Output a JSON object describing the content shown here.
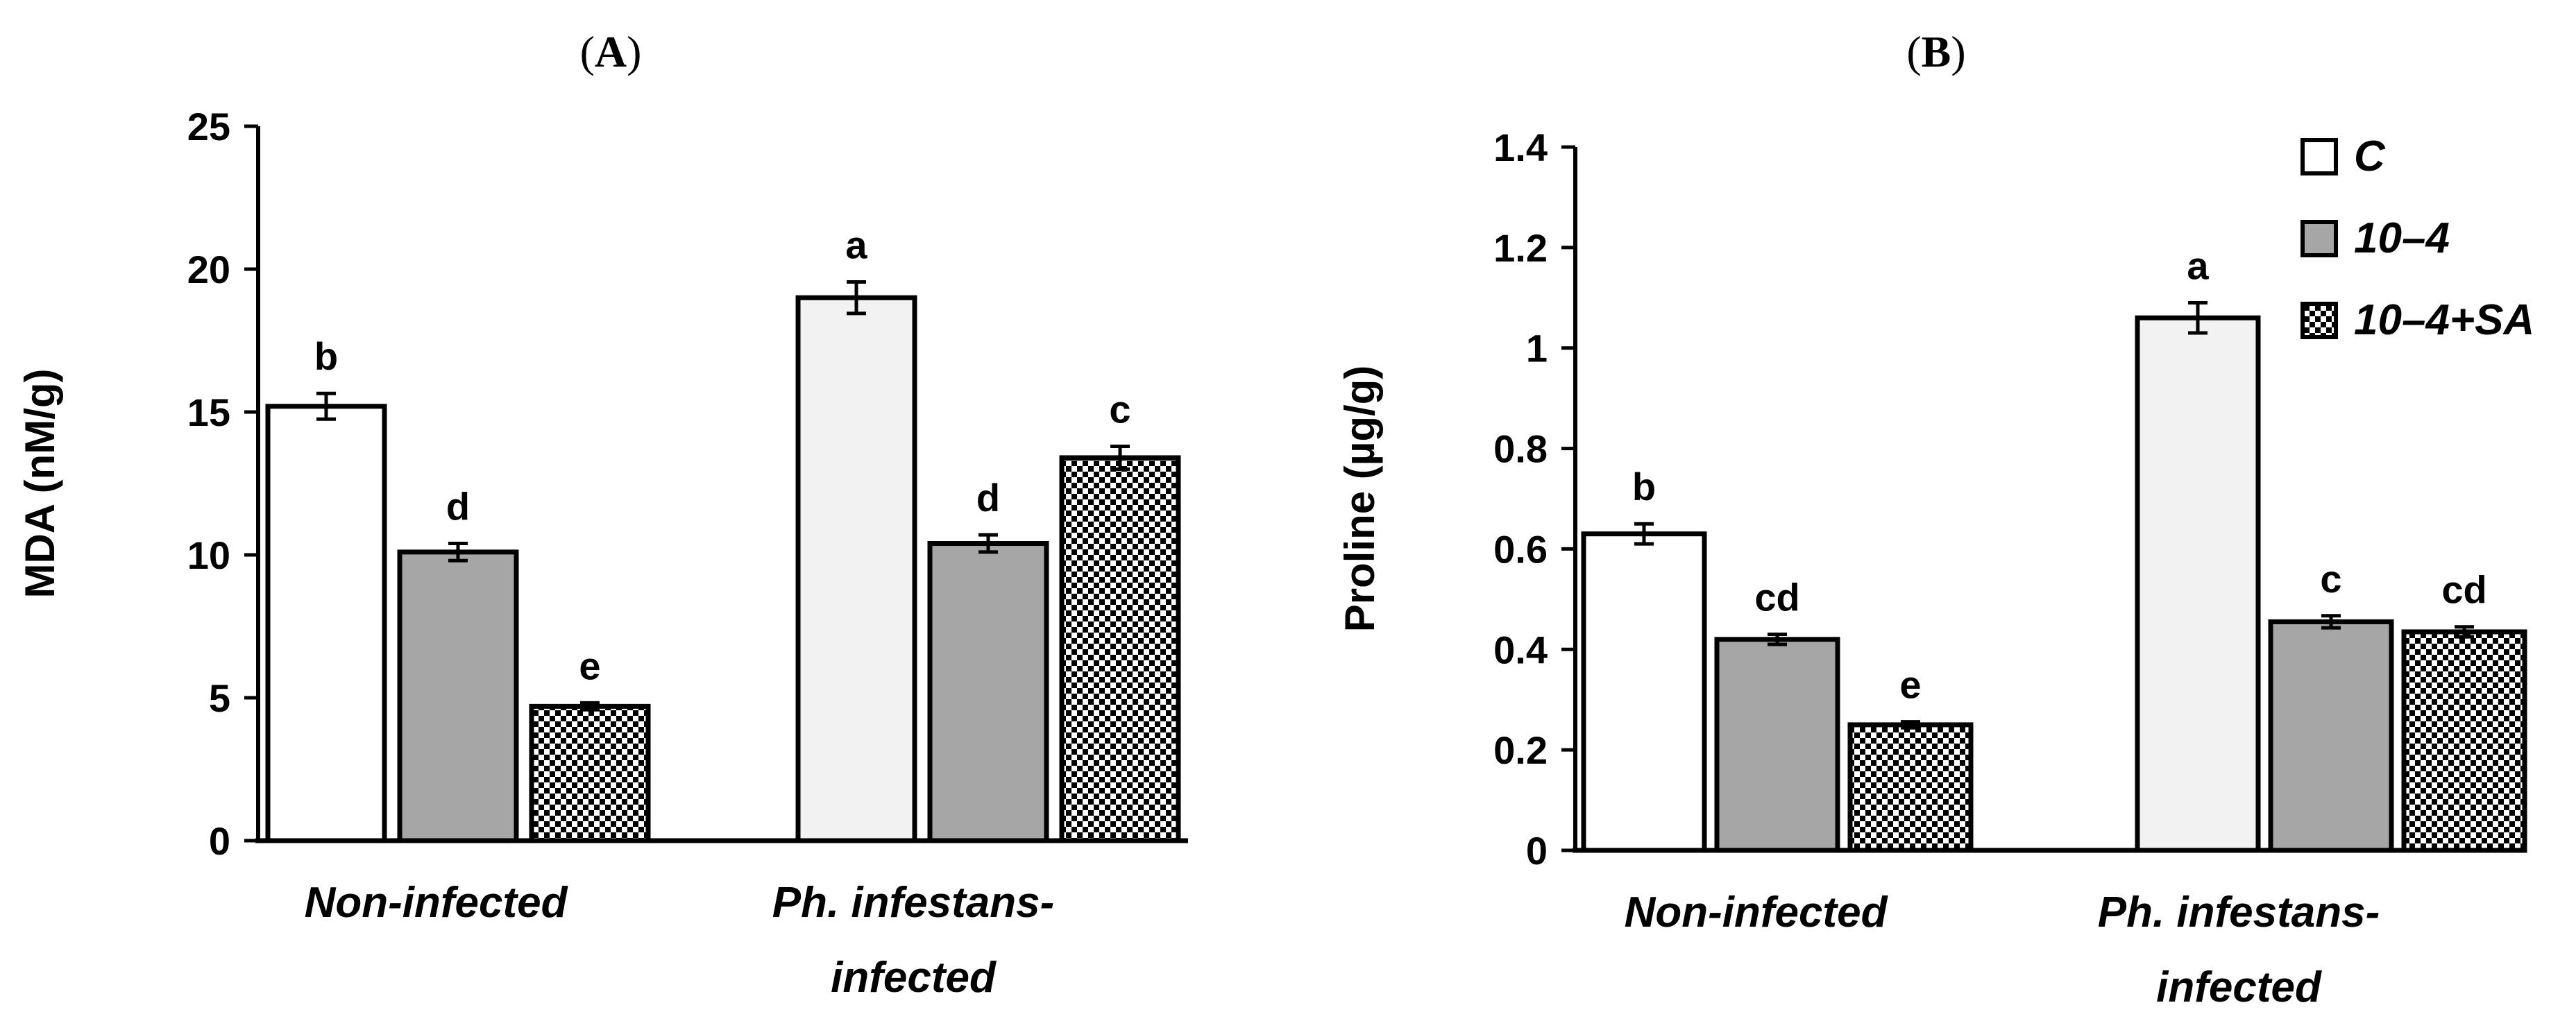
{
  "colors": {
    "C_nonInfected": "#ffffff",
    "C_infected": "#f2f2f2",
    "t10_4": "#a6a6a6",
    "checker": "#000000"
  },
  "legend": [
    "C",
    "10–4",
    "10–4+SA"
  ],
  "chart_data": [
    {
      "type": "bar",
      "panel_label": "(A)",
      "panel_letter": "A",
      "title": "",
      "ylabel": "MDA (nM/g)",
      "xlabel": "",
      "ylim": [
        0,
        25
      ],
      "yticks": [
        "0",
        "5",
        "10",
        "15",
        "20",
        "25"
      ],
      "categories": [
        [
          "Non-infected"
        ],
        [
          "Ph. infestans-",
          "infected"
        ]
      ],
      "series": [
        {
          "name": "C",
          "values": [
            15.2,
            19.0
          ],
          "errors": [
            0.45,
            0.55
          ],
          "labels": [
            "b",
            "a"
          ]
        },
        {
          "name": "10–4",
          "values": [
            10.1,
            10.4
          ],
          "errors": [
            0.3,
            0.3
          ],
          "labels": [
            "d",
            "d"
          ]
        },
        {
          "name": "10–4+SA",
          "values": [
            4.7,
            13.4
          ],
          "errors": [
            0.12,
            0.4
          ],
          "labels": [
            "e",
            "c"
          ]
        }
      ]
    },
    {
      "type": "bar",
      "panel_label": "(B)",
      "panel_letter": "B",
      "title": "",
      "ylabel": "Proline (µg/g)",
      "xlabel": "",
      "ylim": [
        0,
        1.4
      ],
      "yticks": [
        "0",
        "0.2",
        "0.4",
        "0.6",
        "0.8",
        "1",
        "1.2",
        "1.4"
      ],
      "categories": [
        [
          "Non-infected"
        ],
        [
          "Ph. infestans-",
          "infected"
        ]
      ],
      "series": [
        {
          "name": "C",
          "values": [
            0.63,
            1.06
          ],
          "errors": [
            0.02,
            0.03
          ],
          "labels": [
            "b",
            "a"
          ]
        },
        {
          "name": "10–4",
          "values": [
            0.42,
            0.455
          ],
          "errors": [
            0.01,
            0.012
          ],
          "labels": [
            "cd",
            "c"
          ]
        },
        {
          "name": "10–4+SA",
          "values": [
            0.25,
            0.435
          ],
          "errors": [
            0.006,
            0.01
          ],
          "labels": [
            "e",
            "cd"
          ]
        }
      ]
    }
  ]
}
